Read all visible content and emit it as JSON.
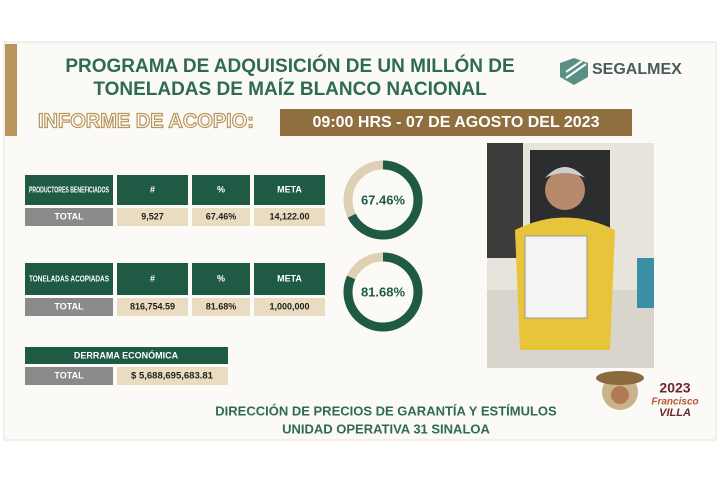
{
  "header": {
    "title_lines": [
      "PROGRAMA DE ADQUISICIÓN DE UN MILLÓN DE",
      "TONELADAS DE MAÍZ BLANCO NACIONAL"
    ],
    "logo": "SEGALMEX",
    "report_label": "INFORME DE ACOPIO:",
    "report_time": "09:00 HRS - 07 DE AGOSTO DEL 2023"
  },
  "tables": [
    {
      "title": "PRODUCTORES BENEFICIADOS",
      "columns": [
        "#",
        "%",
        "META"
      ],
      "row_label": "TOTAL",
      "row": [
        "9,527",
        "67.46%",
        "14,122.00"
      ],
      "gauge": {
        "value": 67.46,
        "label": "67.46%"
      }
    },
    {
      "title": "TONELADAS ACOPIADAS",
      "columns": [
        "#",
        "%",
        "META"
      ],
      "row_label": "TOTAL",
      "row": [
        "816,754.59",
        "81.68%",
        "1,000,000"
      ],
      "gauge": {
        "value": 81.68,
        "label": "81.68%"
      }
    }
  ],
  "economic": {
    "title": "DERRAMA ECONÓMICA",
    "row_label": "TOTAL",
    "value": "$ 5,688,695,683.81"
  },
  "footer": [
    "DIRECCIÓN DE PRECIOS DE GARANTÍA Y ESTÍMULOS",
    "UNIDAD OPERATIVA 31 SINALOA"
  ],
  "badge": {
    "year": "2023",
    "name_lines": [
      "Francisco",
      "VILLA"
    ]
  }
}
